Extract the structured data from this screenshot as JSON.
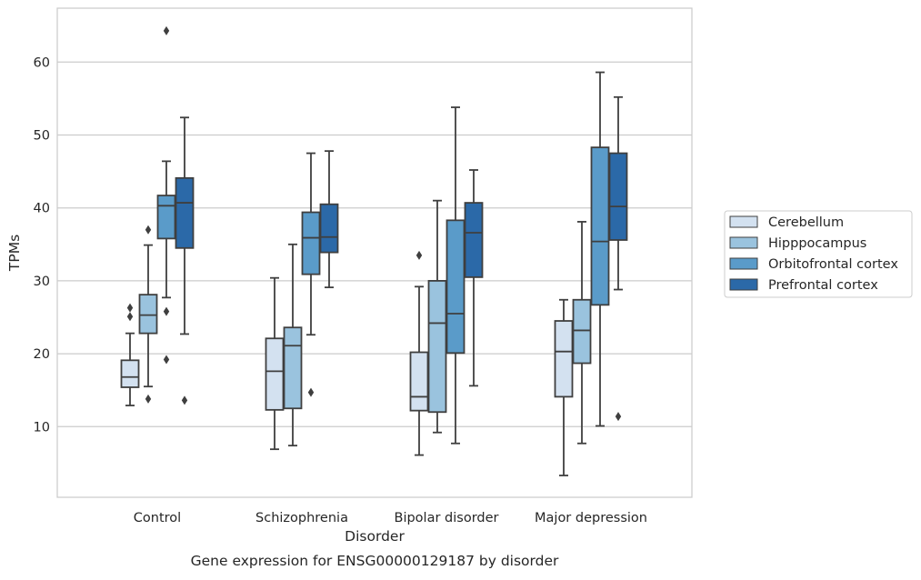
{
  "chart_data": {
    "type": "box",
    "caption": "Gene expression for ENSG00000129187 by disorder",
    "xlabel": "Disorder",
    "ylabel": "TPMs",
    "ylim": [
      0,
      67
    ],
    "yticks": [
      10,
      20,
      30,
      40,
      50,
      60
    ],
    "grid": "horizontal",
    "legend_position": "right",
    "categories": [
      "Control",
      "Schizophrenia",
      "Bipolar disorder",
      "Major depression"
    ],
    "series": [
      {
        "name": "Cerebellum",
        "color": "#d3e1f0",
        "boxes": [
          {
            "whislo": 12.9,
            "q1": 15.4,
            "med": 16.8,
            "q3": 19.1,
            "whishi": 22.8,
            "fliers": [
              25.1,
              26.3
            ]
          },
          {
            "whislo": 6.9,
            "q1": 12.3,
            "med": 17.6,
            "q3": 22.1,
            "whishi": 30.4,
            "fliers": []
          },
          {
            "whislo": 6.1,
            "q1": 12.2,
            "med": 14.1,
            "q3": 20.2,
            "whishi": 29.2,
            "fliers": [
              33.5
            ]
          },
          {
            "whislo": 3.3,
            "q1": 14.1,
            "med": 20.3,
            "q3": 24.5,
            "whishi": 27.4,
            "fliers": []
          }
        ]
      },
      {
        "name": "Hipppocampus",
        "color": "#9ac3de",
        "boxes": [
          {
            "whislo": 15.5,
            "q1": 22.8,
            "med": 25.3,
            "q3": 28.1,
            "whishi": 34.9,
            "fliers": [
              13.8,
              37.0
            ]
          },
          {
            "whislo": 7.4,
            "q1": 12.5,
            "med": 21.1,
            "q3": 23.6,
            "whishi": 35.0,
            "fliers": []
          },
          {
            "whislo": 9.2,
            "q1": 12.0,
            "med": 24.2,
            "q3": 30.0,
            "whishi": 41.0,
            "fliers": []
          },
          {
            "whislo": 7.7,
            "q1": 18.7,
            "med": 23.2,
            "q3": 27.4,
            "whishi": 38.1,
            "fliers": []
          }
        ]
      },
      {
        "name": "Orbitofrontal cortex",
        "color": "#5a9bc9",
        "boxes": [
          {
            "whislo": 27.7,
            "q1": 35.8,
            "med": 40.3,
            "q3": 41.7,
            "whishi": 46.4,
            "fliers": [
              25.8,
              19.2,
              64.3
            ]
          },
          {
            "whislo": 22.6,
            "q1": 30.9,
            "med": 35.9,
            "q3": 39.4,
            "whishi": 47.5,
            "fliers": [
              14.7
            ]
          },
          {
            "whislo": 7.7,
            "q1": 20.1,
            "med": 25.5,
            "q3": 38.3,
            "whishi": 53.8,
            "fliers": []
          },
          {
            "whislo": 10.1,
            "q1": 26.7,
            "med": 35.4,
            "q3": 48.3,
            "whishi": 58.6,
            "fliers": []
          }
        ]
      },
      {
        "name": "Prefrontal cortex",
        "color": "#2b69a8",
        "boxes": [
          {
            "whislo": 22.7,
            "q1": 34.5,
            "med": 40.7,
            "q3": 44.1,
            "whishi": 52.4,
            "fliers": [
              13.6
            ]
          },
          {
            "whislo": 29.1,
            "q1": 33.9,
            "med": 36.0,
            "q3": 40.5,
            "whishi": 47.8,
            "fliers": []
          },
          {
            "whislo": 15.6,
            "q1": 30.5,
            "med": 36.6,
            "q3": 40.7,
            "whishi": 45.2,
            "fliers": []
          },
          {
            "whislo": 28.8,
            "q1": 35.6,
            "med": 40.2,
            "q3": 47.5,
            "whishi": 55.2,
            "fliers": [
              11.4
            ]
          }
        ]
      }
    ]
  }
}
